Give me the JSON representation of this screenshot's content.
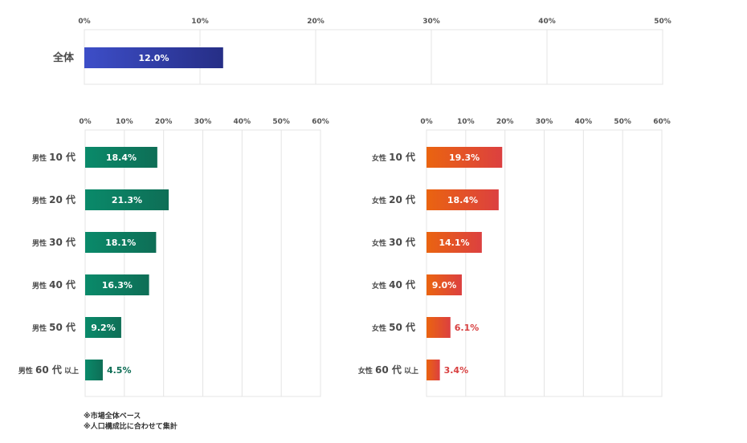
{
  "chart_data": [
    {
      "type": "bar",
      "orientation": "horizontal",
      "categories": [
        {
          "main": "全体",
          "suffix": ""
        }
      ],
      "values": [
        12.0
      ],
      "value_labels": [
        "12.0%"
      ],
      "ticks": [
        "0%",
        "10%",
        "20%",
        "30%",
        "40%",
        "50%"
      ],
      "xlim": [
        0,
        50
      ],
      "grid": true,
      "colors": [
        "#3d4ec8",
        "#262e86"
      ]
    },
    {
      "type": "bar",
      "orientation": "horizontal",
      "categories": [
        {
          "main": "男性 10 代",
          "suffix": ""
        },
        {
          "main": "男性 20 代",
          "suffix": ""
        },
        {
          "main": "男性 30 代",
          "suffix": ""
        },
        {
          "main": "男性 40 代",
          "suffix": ""
        },
        {
          "main": "男性 50 代",
          "suffix": ""
        },
        {
          "main": "男性 60 代",
          "suffix": "以上"
        }
      ],
      "values": [
        18.4,
        21.3,
        18.1,
        16.3,
        9.2,
        4.5
      ],
      "value_labels": [
        "18.4%",
        "21.3%",
        "18.1%",
        "16.3%",
        "9.2%",
        "4.5%"
      ],
      "ticks": [
        "0%",
        "10%",
        "20%",
        "30%",
        "40%",
        "50%",
        "60%"
      ],
      "xlim": [
        0,
        60
      ],
      "grid": true,
      "colors": [
        "#0a8a6a",
        "#0e6e56"
      ],
      "outside_label_color": "#0e6e56"
    },
    {
      "type": "bar",
      "orientation": "horizontal",
      "categories": [
        {
          "main": "女性 10 代",
          "suffix": ""
        },
        {
          "main": "女性 20 代",
          "suffix": ""
        },
        {
          "main": "女性 30 代",
          "suffix": ""
        },
        {
          "main": "女性 40 代",
          "suffix": ""
        },
        {
          "main": "女性 50 代",
          "suffix": ""
        },
        {
          "main": "女性 60 代",
          "suffix": "以上"
        }
      ],
      "values": [
        19.3,
        18.4,
        14.1,
        9.0,
        6.1,
        3.4
      ],
      "value_labels": [
        "19.3%",
        "18.4%",
        "14.1%",
        "9.0%",
        "6.1%",
        "3.4%"
      ],
      "ticks": [
        "0%",
        "10%",
        "20%",
        "30%",
        "40%",
        "50%",
        "60%"
      ],
      "xlim": [
        0,
        60
      ],
      "grid": true,
      "colors": [
        "#ea6410",
        "#dc4040"
      ],
      "outside_label_color": "#d84040"
    }
  ],
  "notes": [
    "※市場全体ベース",
    "※人口構成比に合わせて集計"
  ]
}
